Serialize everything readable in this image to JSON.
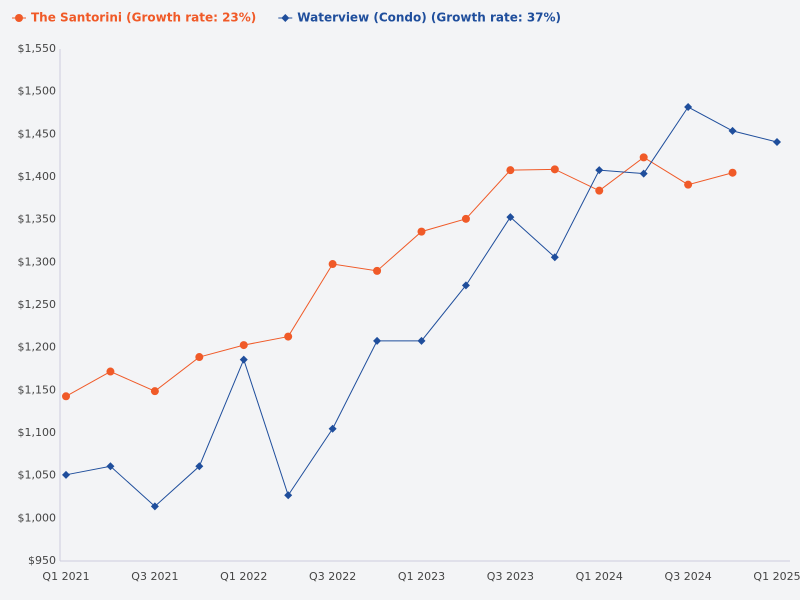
{
  "chart_data": {
    "type": "line",
    "categories": [
      "Q1 2021",
      null,
      "Q3 2021",
      null,
      "Q1 2022",
      null,
      "Q3 2022",
      null,
      "Q1 2023",
      null,
      "Q3 2023",
      null,
      "Q1 2024",
      null,
      "Q3 2024",
      null,
      "Q1 2025"
    ],
    "series": [
      {
        "name": "The Santorini (Growth rate: 23%)",
        "color": "#f05a28",
        "marker": "circle",
        "values": [
          1143,
          1172,
          1149,
          1189,
          1203,
          1213,
          1298,
          1290,
          1336,
          1351,
          1408,
          1409,
          1384,
          1423,
          1391,
          1405,
          null
        ]
      },
      {
        "name": "Waterview (Condo) (Growth rate: 37%)",
        "color": "#1f4e9c",
        "marker": "diamond",
        "values": [
          1051,
          1061,
          1014,
          1061,
          1186,
          1027,
          1105,
          1208,
          1208,
          1273,
          1353,
          1306,
          1408,
          1404,
          1482,
          1454,
          1441
        ]
      }
    ],
    "ylim": [
      950,
      1550
    ],
    "yticks": [
      {
        "value": 950,
        "label": "$950"
      },
      {
        "value": 1000,
        "label": "$1,000"
      },
      {
        "value": 1050,
        "label": "$1,050"
      },
      {
        "value": 1100,
        "label": "$1,100"
      },
      {
        "value": 1150,
        "label": "$1,150"
      },
      {
        "value": 1200,
        "label": "$1,200"
      },
      {
        "value": 1250,
        "label": "$1,250"
      },
      {
        "value": 1300,
        "label": "$1,300"
      },
      {
        "value": 1350,
        "label": "$1,350"
      },
      {
        "value": 1400,
        "label": "$1,400"
      },
      {
        "value": 1450,
        "label": "$1,450"
      },
      {
        "value": 1500,
        "label": "$1,500"
      },
      {
        "value": 1550,
        "label": "$1,550"
      }
    ],
    "grid": false,
    "legend": "top-left"
  }
}
